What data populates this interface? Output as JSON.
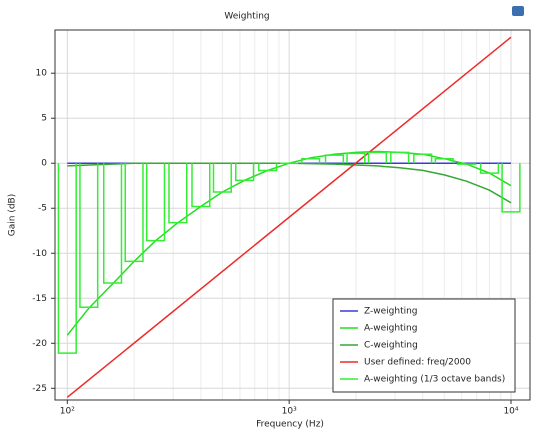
{
  "chart_data": {
    "type": "line",
    "title": "Weighting",
    "x_label": "Frequency (Hz)",
    "y_label": "Gain (dB)",
    "x_log": true,
    "grid": true,
    "legend_position": "lower right",
    "xlim": [
      88,
      12180
    ],
    "ylim": [
      -26.3,
      14.8
    ],
    "xticks": [
      {
        "value": 100,
        "label": "10²"
      },
      {
        "value": 1000,
        "label": "10³"
      },
      {
        "value": 10000,
        "label": "10⁴"
      }
    ],
    "x_minor_ticks": [
      200,
      300,
      400,
      500,
      600,
      700,
      800,
      900,
      2000,
      3000,
      4000,
      5000,
      6000,
      7000,
      8000,
      9000
    ],
    "yticks": [
      -25,
      -20,
      -15,
      -10,
      -5,
      0,
      5,
      10
    ],
    "series": [
      {
        "name": "Z-weighting",
        "color": "#3a3ad8",
        "x": [
          100,
          10000
        ],
        "values": [
          0,
          0
        ]
      },
      {
        "name": "A-weighting",
        "color": "#22dd22",
        "x": [
          100,
          125,
          160,
          200,
          250,
          315,
          400,
          500,
          630,
          800,
          1000,
          1250,
          1600,
          2000,
          2500,
          3150,
          4000,
          5000,
          6300,
          8000,
          10000
        ],
        "values": [
          -19.1,
          -16.1,
          -13.4,
          -10.9,
          -8.6,
          -6.6,
          -4.8,
          -3.2,
          -1.9,
          -0.8,
          0,
          0.6,
          1.0,
          1.2,
          1.3,
          1.2,
          1.0,
          0.5,
          -0.1,
          -1.1,
          -2.5
        ]
      },
      {
        "name": "C-weighting",
        "color": "#35a835",
        "x": [
          100,
          200,
          1000,
          1600,
          2000,
          2500,
          3150,
          4000,
          5000,
          6300,
          8000,
          10000
        ],
        "values": [
          -0.3,
          0,
          0,
          -0.1,
          -0.2,
          -0.3,
          -0.5,
          -0.8,
          -1.3,
          -2.0,
          -3.0,
          -4.4
        ]
      },
      {
        "name": "User defined: freq/2000",
        "color": "#ee2a2a",
        "x": [
          100,
          10000
        ],
        "values": [
          -26.0,
          14.0
        ]
      },
      {
        "name": "A-weighting (1/3 octave bands)",
        "color": "#33ee33",
        "kind": "bands",
        "x": [
          100,
          125,
          160,
          200,
          250,
          315,
          400,
          500,
          630,
          800,
          1000,
          1250,
          1600,
          2000,
          2500,
          3150,
          4000,
          5000,
          6300,
          8000,
          10000
        ],
        "values": [
          -21.1,
          -16.0,
          -13.3,
          -10.9,
          -8.6,
          -6.6,
          -4.8,
          -3.2,
          -1.9,
          -0.8,
          0,
          0.5,
          0.9,
          1.1,
          1.2,
          1.2,
          1.0,
          0.5,
          -0.1,
          -1.1,
          -5.4
        ]
      }
    ]
  }
}
